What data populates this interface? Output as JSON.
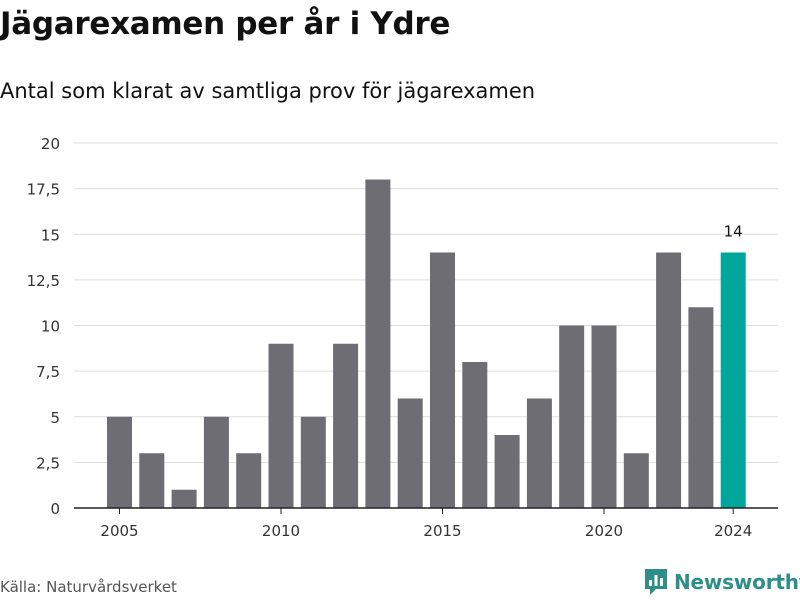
{
  "title": "Jägarexamen per år i Ydre",
  "subtitle": "Antal som klarat av samtliga prov för jägarexamen",
  "source": "Källa: Naturvårdsverket",
  "brand": {
    "name": "Newsworthy",
    "icon": "bar-chart-logo-icon"
  },
  "colors": {
    "bar": "#6e6d73",
    "highlight": "#00a69c",
    "grid": "#dddddd",
    "axis": "#222222"
  },
  "chart_data": {
    "type": "bar",
    "categories": [
      2005,
      2006,
      2007,
      2008,
      2009,
      2010,
      2011,
      2012,
      2013,
      2014,
      2015,
      2016,
      2017,
      2018,
      2019,
      2020,
      2021,
      2022,
      2023,
      2024
    ],
    "values": [
      5,
      3,
      1,
      5,
      3,
      9,
      5,
      9,
      18,
      6,
      14,
      8,
      4,
      6,
      10,
      10,
      3,
      14,
      11,
      14
    ],
    "highlight_index": 19,
    "highlight_label": "14",
    "ylim": [
      0,
      20
    ],
    "yticks": [
      0,
      2.5,
      5,
      7.5,
      10,
      12.5,
      15,
      17.5,
      20
    ],
    "ytick_labels": [
      "0",
      "2,5",
      "5",
      "7,5",
      "10",
      "12,5",
      "15",
      "17,5",
      "20"
    ],
    "xticks": [
      2005,
      2010,
      2015,
      2020,
      2024
    ],
    "xtick_labels": [
      "2005",
      "2010",
      "2015",
      "2020",
      "2024"
    ],
    "grid": true
  }
}
